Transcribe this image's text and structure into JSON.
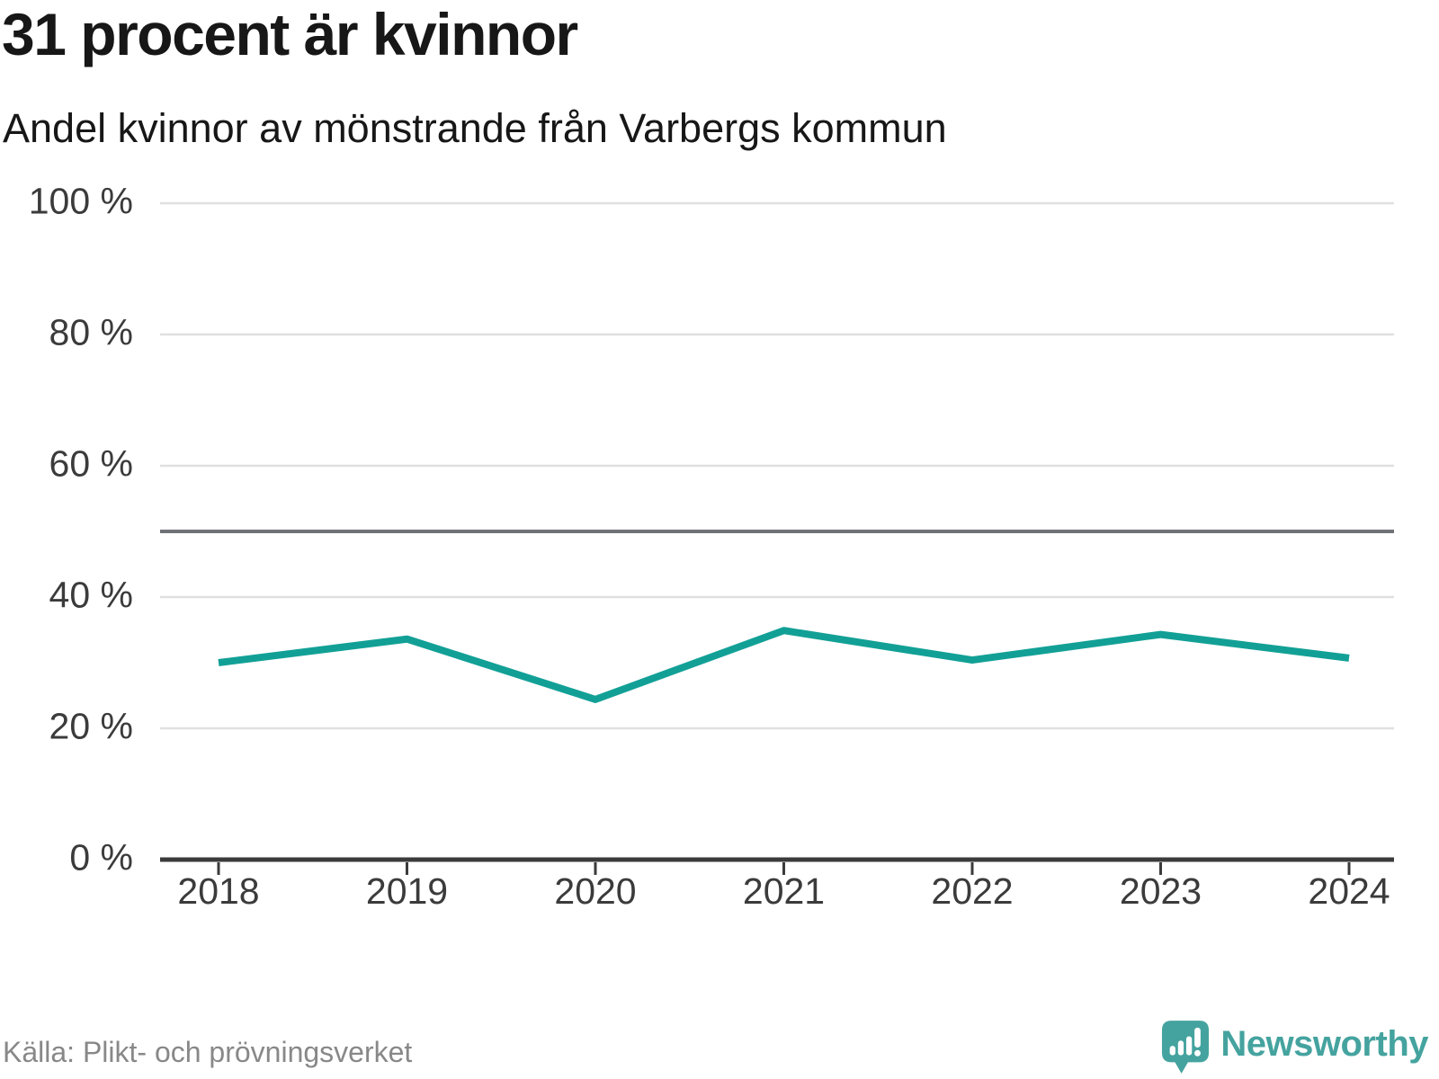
{
  "chart_data": {
    "type": "line",
    "title": "31 procent är kvinnor",
    "subtitle": "Andel kvinnor av mönstrande från Varbergs kommun",
    "categories": [
      "2018",
      "2019",
      "2020",
      "2021",
      "2022",
      "2023",
      "2024"
    ],
    "series": [
      {
        "name": "Andel kvinnor av mönstrande",
        "values": [
          30.0,
          33.6,
          24.4,
          34.9,
          30.4,
          34.3,
          30.7
        ]
      }
    ],
    "xlabel": "",
    "ylabel": "",
    "ylim": [
      0,
      100
    ],
    "yticks": [
      0,
      20,
      40,
      60,
      80,
      100
    ],
    "ytick_suffix": " %",
    "reference_line": 50,
    "grid": true,
    "legend": false
  },
  "colors": {
    "line": "#12a096",
    "grid": "#e0e0e0",
    "axis": "#3b3b3b",
    "reference": "#707277",
    "text": "#171717",
    "ticklabel": "#3b3b3b",
    "source": "#888888",
    "brand": "#45a39f",
    "icon_glyph": "#ffffff"
  },
  "footer": {
    "source": "Källa: Plikt- och prövningsverket",
    "brand_name": "Newsworthy"
  },
  "icons": {
    "logo": "speech-bubble-chart-icon"
  }
}
